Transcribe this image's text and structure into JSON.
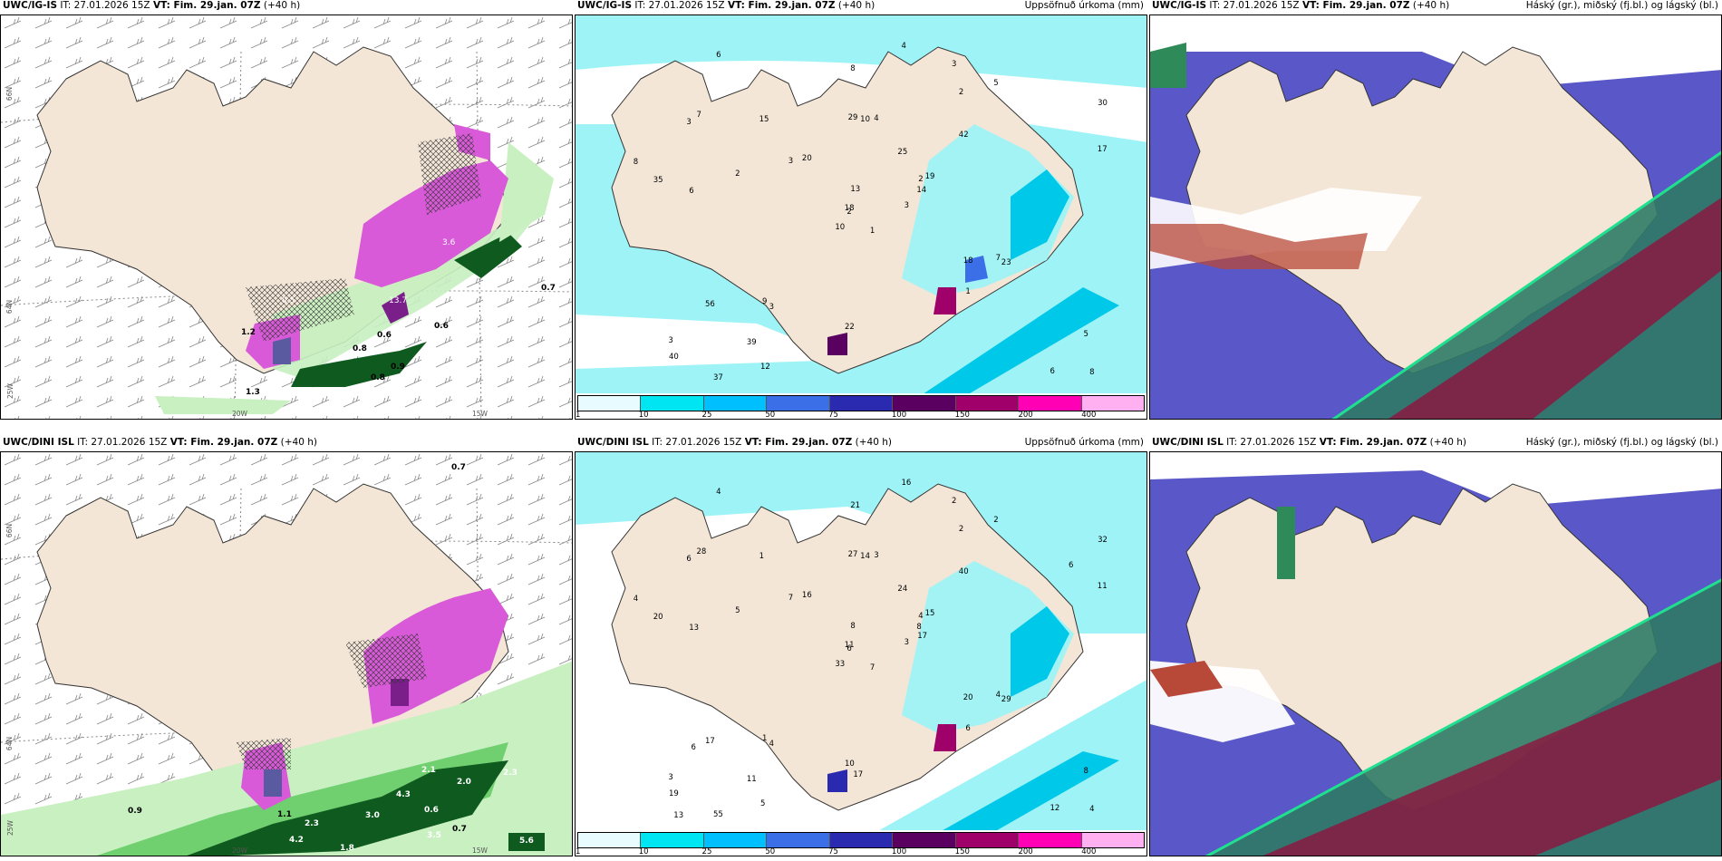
{
  "panels": {
    "top_left": {
      "model": "UWC/IG-IS",
      "it": "IT: 27.01.2026 15Z",
      "vt": "VT: Fim. 29.jan. 07Z",
      "lead": "(+40 h)",
      "right": ""
    },
    "top_mid": {
      "model": "UWC/IG-IS",
      "it": "IT: 27.01.2026 15Z",
      "vt": "VT: Fim. 29.jan. 07Z",
      "lead": "(+40 h)",
      "right": "Uppsöfnuð úrkoma (mm)"
    },
    "top_right": {
      "model": "UWC/IG-IS",
      "it": "IT: 27.01.2026 15Z",
      "vt": "VT: Fim. 29.jan. 07Z",
      "lead": "(+40 h)",
      "right": "Háský (gr.), miðský (fj.bl.) og lágský (bl.)"
    },
    "bot_left": {
      "model": "UWC/DINI ISL",
      "it": "IT: 27.01.2026 15Z",
      "vt": "VT: Fim. 29.jan. 07Z",
      "lead": "(+40 h)",
      "right": ""
    },
    "bot_mid": {
      "model": "UWC/DINI ISL",
      "it": "IT: 27.01.2026 15Z",
      "vt": "VT: Fim. 29.jan. 07Z",
      "lead": "(+40 h)",
      "right": "Uppsöfnuð úrkoma (mm)"
    },
    "bot_right": {
      "model": "UWC/DINI ISL",
      "it": "IT: 27.01.2026 15Z",
      "vt": "VT: Fim. 29.jan. 07Z",
      "lead": "(+40 h)",
      "right": "Háský (gr.), miðský (fj.bl.) og lágský (bl.)"
    }
  },
  "axes": {
    "lat1": "66N",
    "lat2": "64N",
    "lat3": "25W",
    "lon1": "20W",
    "lon2": "15W"
  },
  "colorbar": {
    "ticks": [
      "1",
      "10",
      "25",
      "50",
      "75",
      "100",
      "150",
      "200",
      "400"
    ],
    "colors": [
      "#e8fbff",
      "#00e5f2",
      "#00bfff",
      "#3a6fe8",
      "#2a2ab0",
      "#5a0060",
      "#a0006a",
      "#ff00b4",
      "#ffb0f0"
    ]
  },
  "top_left_labels": [
    "0.7",
    "1.2",
    "0.8",
    "0.6",
    "0.9",
    "1.3",
    "0.5",
    "3.6",
    "13.7",
    "0.6",
    "0.8"
  ],
  "bot_left_labels": [
    "0.7",
    "0.9",
    "1.1",
    "4.2",
    "1.8",
    "2.3",
    "3.0",
    "0.6",
    "3.5",
    "0.7",
    "2.3",
    "2.0",
    "2.1",
    "4.3",
    "5.6"
  ],
  "top_mid_labels": [
    "1",
    "3",
    "2",
    "3",
    "2",
    "3",
    "3",
    "4",
    "2",
    "3",
    "6",
    "8",
    "6",
    "30",
    "10",
    "42",
    "37",
    "29",
    "25",
    "56",
    "20",
    "40",
    "39",
    "10",
    "19",
    "23",
    "7",
    "8",
    "35",
    "18",
    "17",
    "18",
    "22",
    "13",
    "15",
    "5",
    "9",
    "6",
    "5",
    "7",
    "4",
    "3",
    "2",
    "1",
    "12",
    "8",
    "14"
  ],
  "bot_mid_labels": [
    "7",
    "6",
    "6",
    "3",
    "4",
    "4",
    "2",
    "3",
    "2",
    "3",
    "4",
    "4",
    "13",
    "32",
    "33",
    "40",
    "55",
    "27",
    "24",
    "17",
    "16",
    "19",
    "11",
    "14",
    "15",
    "29",
    "28",
    "21",
    "20",
    "20",
    "11",
    "11",
    "10",
    "8",
    "1",
    "2",
    "1",
    "12",
    "8",
    "4",
    "16",
    "7",
    "5",
    "6",
    "5",
    "4",
    "8",
    "13",
    "17",
    "17",
    "6",
    "6"
  ],
  "colors": {
    "land": "#f3e6d6",
    "green_light": "#c8f0c0",
    "green_mid": "#70d070",
    "green_dark": "#0f5a1e",
    "purple": "#d85ad8",
    "purple_dark": "#7a1f8a",
    "cyan": "#9ef3f7",
    "cyan_mid": "#00c8e8",
    "blue": "#2a5fd0",
    "red": "#a0183a",
    "teal": "#2f7a66"
  }
}
